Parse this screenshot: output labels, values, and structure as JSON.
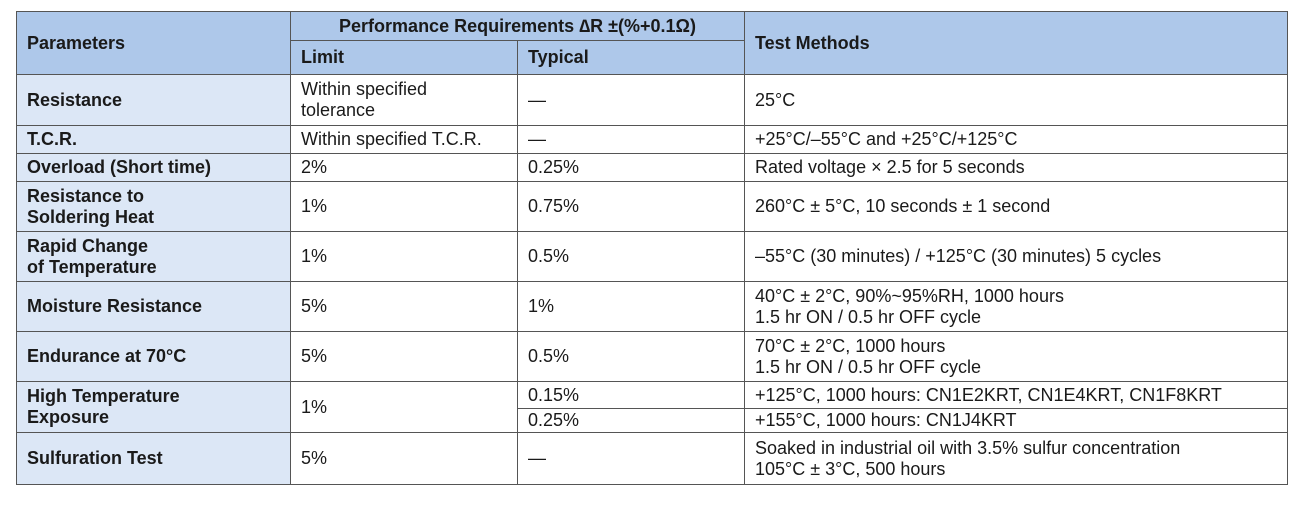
{
  "header": {
    "parameters": "Parameters",
    "performance": "Performance Requirements ∆R ±(%+0.1Ω)",
    "limit": "Limit",
    "typical": "Typical",
    "test_methods": "Test Methods"
  },
  "rows": [
    {
      "param": "Resistance",
      "limit": "Within specified\ntolerance",
      "typical": "—",
      "method": "25°C"
    },
    {
      "param": "T.C.R.",
      "limit": "Within specified T.C.R.",
      "typical": "—",
      "method": "+25°C/–55°C and +25°C/+125°C"
    },
    {
      "param": "Overload (Short time)",
      "limit": "2%",
      "typical": "0.25%",
      "method": "Rated voltage × 2.5 for 5 seconds"
    },
    {
      "param": "Resistance to\nSoldering Heat",
      "limit": "1%",
      "typical": "0.75%",
      "method": "260°C ± 5°C, 10 seconds ± 1 second"
    },
    {
      "param": "Rapid Change\nof Temperature",
      "limit": "1%",
      "typical": "0.5%",
      "method": "–55°C (30 minutes) / +125°C (30 minutes) 5 cycles"
    },
    {
      "param": "Moisture Resistance",
      "limit": "5%",
      "typical": "1%",
      "method": "40°C ± 2°C, 90%~95%RH, 1000 hours\n1.5 hr ON / 0.5 hr OFF cycle"
    },
    {
      "param": "Endurance at 70°C",
      "limit": "5%",
      "typical": "0.5%",
      "method": "70°C ± 2°C, 1000 hours\n1.5 hr ON / 0.5 hr OFF cycle"
    },
    {
      "param": "High Temperature\nExposure",
      "limit": "1%",
      "typical": "0.15%",
      "method": "+125°C, 1000 hours: CN1E2KRT, CN1E4KRT, CN1F8KRT",
      "typical_2": "0.25%",
      "method_2": "+155°C, 1000 hours: CN1J4KRT"
    },
    {
      "param": "Sulfuration Test",
      "limit": "5%",
      "typical": "—",
      "method": "Soaked in industrial oil with 3.5% sulfur concentration\n105°C ± 3°C, 500 hours"
    }
  ]
}
